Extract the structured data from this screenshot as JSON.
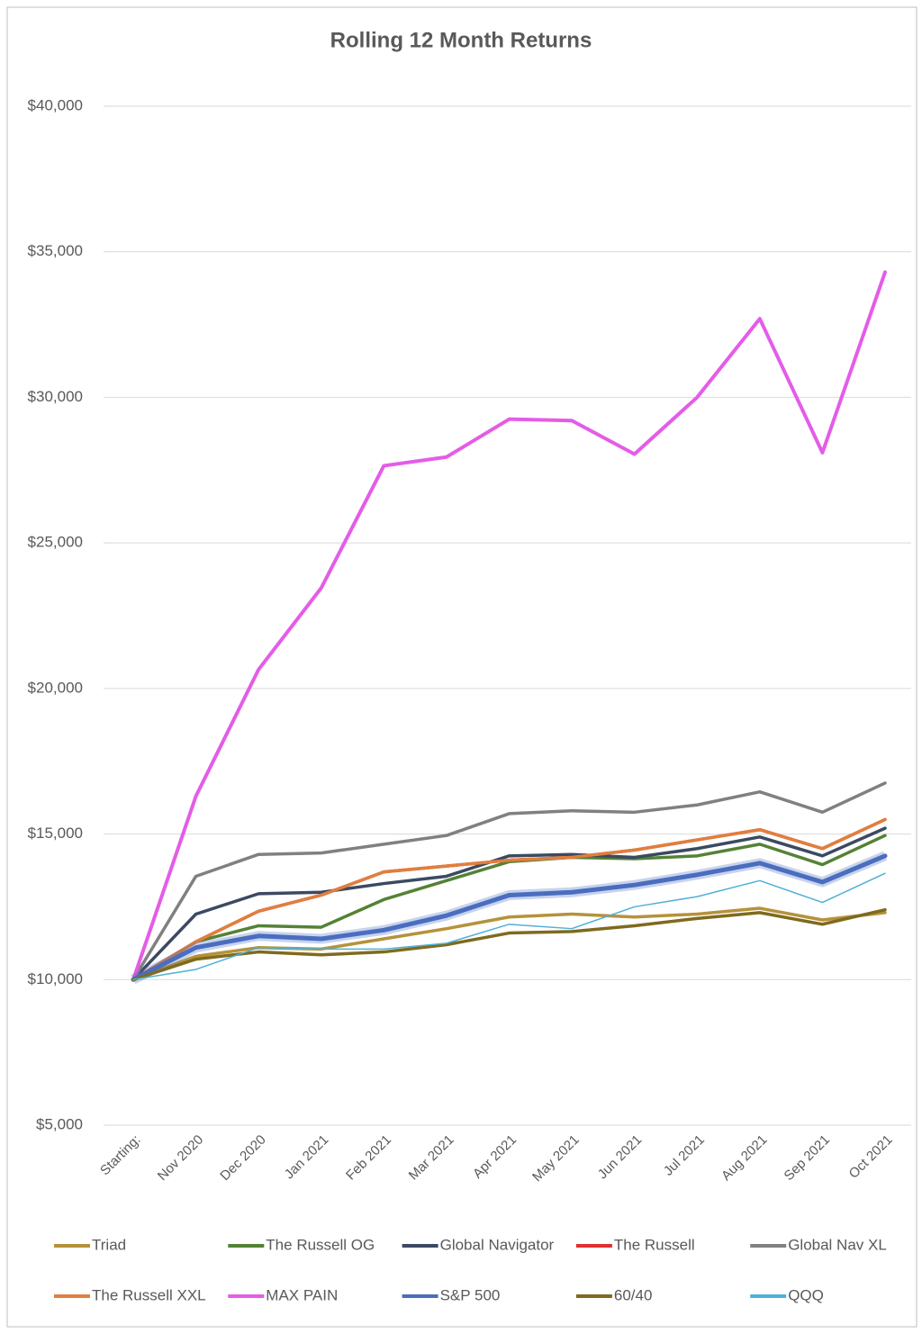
{
  "chart_data": {
    "type": "line",
    "title": "Rolling 12 Month Returns",
    "categories": [
      "Starting:",
      "Nov 2020",
      "Dec 2020",
      "Jan 2021",
      "Feb 2021",
      "Mar 2021",
      "Apr 2021",
      "May 2021",
      "Jun 2021",
      "Jul 2021",
      "Aug 2021",
      "Sep 2021",
      "Oct 2021"
    ],
    "ylim": [
      5000,
      40000
    ],
    "yticks": [
      {
        "value": 5000,
        "label": "$5,000"
      },
      {
        "value": 10000,
        "label": "$10,000"
      },
      {
        "value": 15000,
        "label": "$15,000"
      },
      {
        "value": 20000,
        "label": "$20,000"
      },
      {
        "value": 25000,
        "label": "$25,000"
      },
      {
        "value": 30000,
        "label": "$30,000"
      },
      {
        "value": 35000,
        "label": "$35,000"
      },
      {
        "value": 40000,
        "label": "$40,000"
      }
    ],
    "grid": true,
    "legend": "bottom",
    "series": [
      {
        "name": "Triad",
        "color": "#b5923a",
        "values": [
          10000,
          10800,
          11100,
          11050,
          11400,
          11750,
          12150,
          12250,
          12150,
          12250,
          12450,
          12050,
          12300
        ]
      },
      {
        "name": "The Russell OG",
        "color": "#548235",
        "values": [
          10000,
          11300,
          11850,
          11800,
          12750,
          13400,
          14050,
          14200,
          14150,
          14250,
          14650,
          13950,
          14950
        ]
      },
      {
        "name": "Global Navigator",
        "color": "#3b4a61",
        "values": [
          10000,
          12250,
          12950,
          13000,
          13300,
          13550,
          14250,
          14300,
          14200,
          14500,
          14900,
          14250,
          15200
        ]
      },
      {
        "name": "The Russell",
        "color": "#e03030",
        "values": [
          10000,
          11300,
          12350,
          12900,
          13700,
          13900,
          14100,
          14200,
          14450,
          14800,
          15150,
          14500,
          15500
        ]
      },
      {
        "name": "Global Nav XL",
        "color": "#808080",
        "values": [
          10000,
          13550,
          14300,
          14350,
          14650,
          14950,
          15700,
          15800,
          15750,
          16000,
          16450,
          15750,
          16750
        ]
      },
      {
        "name": "The Russell XXL",
        "color": "#e07f3e",
        "values": [
          10000,
          11300,
          12350,
          12900,
          13700,
          13900,
          14100,
          14200,
          14450,
          14800,
          15150,
          14500,
          15500
        ]
      },
      {
        "name": "MAX PAIN",
        "color": "#e45ce8",
        "values": [
          10000,
          16300,
          20650,
          23450,
          27650,
          27950,
          29250,
          29200,
          28050,
          30000,
          32700,
          28100,
          34300
        ]
      },
      {
        "name": "S&P 500",
        "color": "#4a6dbf",
        "values": [
          10000,
          11100,
          11500,
          11400,
          11700,
          12200,
          12900,
          13000,
          13250,
          13600,
          14000,
          13350,
          14250
        ]
      },
      {
        "name": "60/40",
        "color": "#7f6a1e",
        "values": [
          10000,
          10700,
          10950,
          10850,
          10950,
          11200,
          11600,
          11650,
          11850,
          12100,
          12300,
          11900,
          12400
        ]
      },
      {
        "name": "QQQ",
        "color": "#4fb0d8",
        "values": [
          10000,
          10350,
          11100,
          11050,
          11050,
          11250,
          11900,
          11750,
          12500,
          12850,
          13400,
          12650,
          13650
        ]
      }
    ]
  }
}
